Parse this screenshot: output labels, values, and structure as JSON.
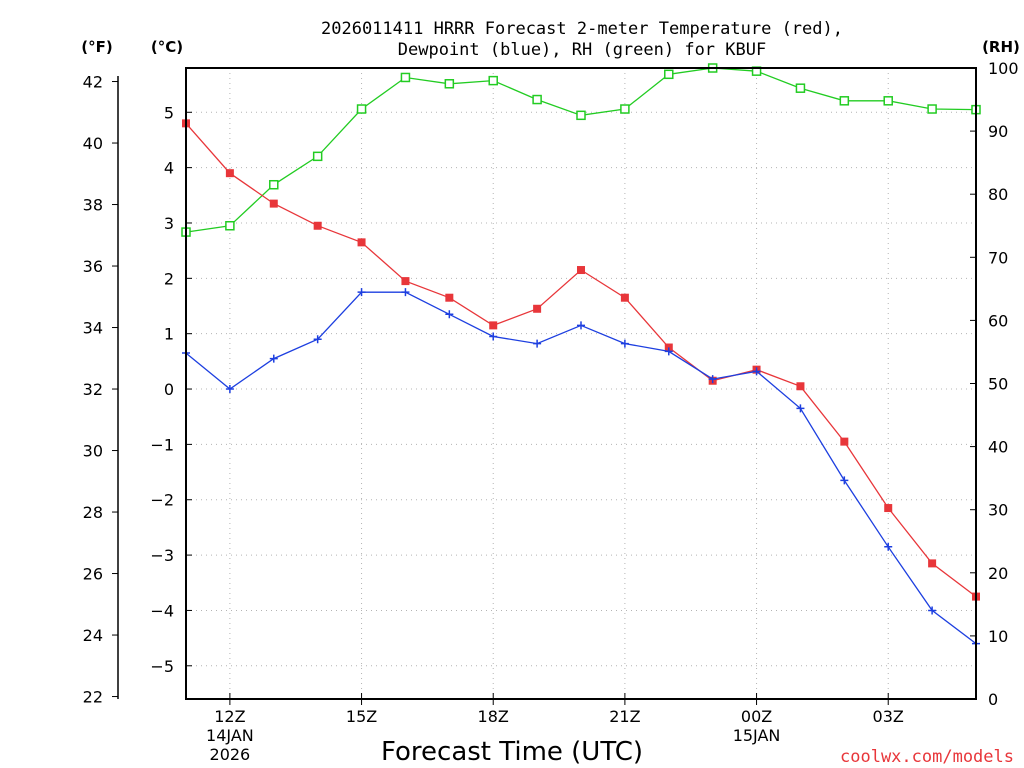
{
  "chart_data": {
    "type": "line",
    "title_line1": "2026011411 HRRR Forecast 2-meter Temperature (red),",
    "title_line2": "Dewpoint (blue), RH (green) for KBUF",
    "xlabel": "Forecast Time (UTC)",
    "credit": "coolwx.com/models",
    "left_axis_f_unit": "(°F)",
    "left_axis_c_unit": "(°C)",
    "right_axis_unit": "(RH)",
    "f_ticks": [
      "22",
      "24",
      "26",
      "28",
      "30",
      "32",
      "34",
      "36",
      "38",
      "40",
      "42"
    ],
    "c_ticks": [
      "-5",
      "-4",
      "-3",
      "-2",
      "-1",
      "0",
      "1",
      "2",
      "3",
      "4",
      "5"
    ],
    "rh_ticks": [
      "0",
      "10",
      "20",
      "30",
      "40",
      "50",
      "60",
      "70",
      "80",
      "90",
      "100"
    ],
    "x_ticks": [
      {
        "hour": 12,
        "line1": "12Z",
        "line2": "14JAN",
        "line3": "2026"
      },
      {
        "hour": 15,
        "line1": "15Z",
        "line2": "",
        "line3": ""
      },
      {
        "hour": 18,
        "line1": "18Z",
        "line2": "",
        "line3": ""
      },
      {
        "hour": 21,
        "line1": "21Z",
        "line2": "",
        "line3": ""
      },
      {
        "hour": 24,
        "line1": "00Z",
        "line2": "15JAN",
        "line3": ""
      },
      {
        "hour": 27,
        "line1": "03Z",
        "line2": "",
        "line3": ""
      }
    ],
    "x_range_hours": [
      11,
      29
    ],
    "c_range": [
      -5.6,
      5.8
    ],
    "rh_range": [
      0,
      100
    ],
    "hours": [
      11,
      12,
      13,
      14,
      15,
      16,
      17,
      18,
      19,
      20,
      21,
      22,
      23,
      24,
      25,
      26,
      27,
      28,
      29
    ],
    "series": [
      {
        "name": "Temperature",
        "unit": "C",
        "color": "#e8363a",
        "marker": "filled-square",
        "values": [
          4.8,
          3.9,
          3.35,
          2.95,
          2.65,
          1.95,
          1.65,
          1.15,
          1.45,
          2.15,
          1.65,
          0.75,
          0.15,
          0.35,
          0.05,
          -0.95,
          -2.15,
          -3.15,
          -3.75
        ]
      },
      {
        "name": "Dewpoint",
        "unit": "C",
        "color": "#1d3fe0",
        "marker": "plus",
        "values": [
          0.65,
          0.0,
          0.55,
          0.9,
          1.75,
          1.75,
          1.35,
          0.95,
          0.82,
          1.15,
          0.82,
          0.68,
          0.18,
          0.32,
          -0.35,
          -1.65,
          -2.85,
          -4.0,
          -4.6
        ]
      },
      {
        "name": "RH",
        "unit": "%",
        "color": "#22cc22",
        "marker": "open-square",
        "values": [
          74,
          75,
          81.5,
          86,
          93.5,
          98.5,
          97.5,
          98,
          95,
          92.5,
          93.5,
          99,
          100,
          99.5,
          96.8,
          94.8,
          94.8,
          93.5,
          93.4
        ]
      }
    ]
  }
}
